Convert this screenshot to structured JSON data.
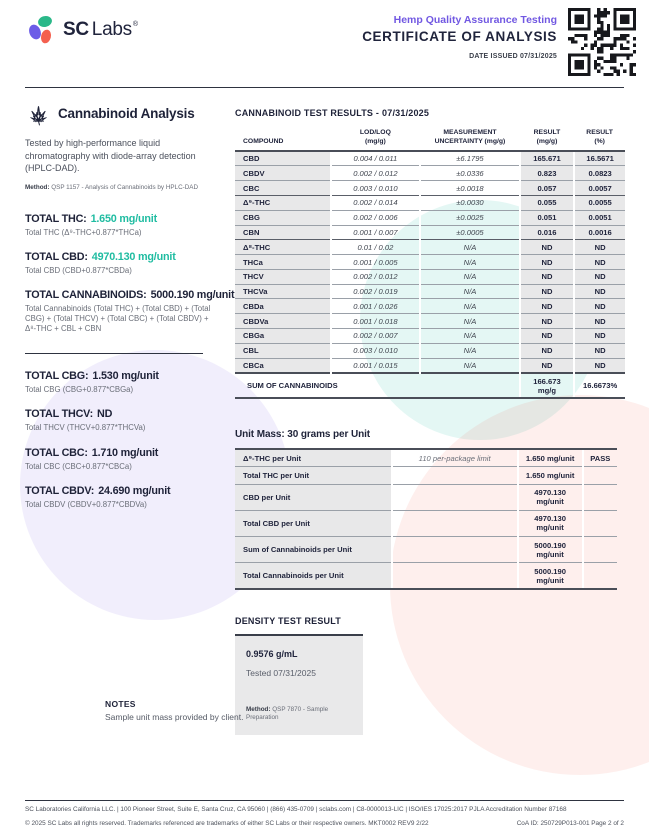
{
  "header": {
    "brand": {
      "sc": "SC",
      "labs": "Labs",
      "reg": "®"
    },
    "program": "Hemp Quality Assurance Testing",
    "title": "CERTIFICATE OF ANALYSIS",
    "date_issued": "DATE ISSUED 07/31/2025"
  },
  "left_panel": {
    "section_title": "Cannabinoid Analysis",
    "description": "Tested by high-performance liquid chromatography with diode-array detection (HPLC-DAD).",
    "method_label": "Method:",
    "method_text": "QSP 1157 - Analysis of Cannabinoids by HPLC-DAD",
    "totals": [
      {
        "label": "TOTAL THC:",
        "value": "1.650 mg/unit",
        "teal": true,
        "formula": "Total THC (Δ⁹-THC+0.877*THCa)"
      },
      {
        "label": "TOTAL CBD:",
        "value": "4970.130 mg/unit",
        "teal": true,
        "formula": "Total CBD (CBD+0.877*CBDa)"
      },
      {
        "label": "TOTAL CANNABINOIDS:",
        "value": "5000.190 mg/unit",
        "teal": false,
        "formula": "Total Cannabinoids (Total THC) + (Total CBD) + (Total CBG) + (Total THCV) + (Total CBC) + (Total CBDV) + Δ⁸-THC + CBL + CBN",
        "divider_after": true
      },
      {
        "label": "TOTAL CBG:",
        "value": "1.530 mg/unit",
        "teal": false,
        "formula": "Total CBG (CBG+0.877*CBGa)"
      },
      {
        "label": "TOTAL THCV:",
        "value": "ND",
        "teal": false,
        "formula": "Total THCV (THCV+0.877*THCVa)"
      },
      {
        "label": "TOTAL CBC:",
        "value": "1.710 mg/unit",
        "teal": false,
        "formula": "Total CBC (CBC+0.877*CBCa)"
      },
      {
        "label": "TOTAL CBDV:",
        "value": "24.690 mg/unit",
        "teal": false,
        "formula": "Total CBDV (CBDV+0.877*CBDVa)"
      }
    ]
  },
  "results_section": {
    "title": "CANNABINOID TEST RESULTS -",
    "date": "07/31/2025",
    "columns": [
      {
        "l1": "COMPOUND",
        "l2": ""
      },
      {
        "l1": "LOD/LOQ",
        "l2": "(mg/g)"
      },
      {
        "l1": "MEASUREMENT",
        "l2": "UNCERTAINTY (mg/g)"
      },
      {
        "l1": "RESULT",
        "l2": "(mg/g)"
      },
      {
        "l1": "RESULT",
        "l2": "(%)"
      }
    ],
    "rows": [
      {
        "compound": "CBD",
        "lod_loq": "0.004 / 0.011",
        "uncertainty": "±6.1795",
        "result_mg": "165.671",
        "result_pct": "16.5671"
      },
      {
        "compound": "CBDV",
        "lod_loq": "0.002 / 0.012",
        "uncertainty": "±0.0336",
        "result_mg": "0.823",
        "result_pct": "0.0823"
      },
      {
        "compound": "CBC",
        "lod_loq": "0.003 / 0.010",
        "uncertainty": "±0.0018",
        "result_mg": "0.057",
        "result_pct": "0.0057",
        "group_end": true
      },
      {
        "compound": "Δ⁹-THC",
        "lod_loq": "0.002 / 0.014",
        "uncertainty": "±0.0030",
        "result_mg": "0.055",
        "result_pct": "0.0055"
      },
      {
        "compound": "CBG",
        "lod_loq": "0.002 / 0.006",
        "uncertainty": "±0.0025",
        "result_mg": "0.051",
        "result_pct": "0.0051"
      },
      {
        "compound": "CBN",
        "lod_loq": "0.001 / 0.007",
        "uncertainty": "±0.0005",
        "result_mg": "0.016",
        "result_pct": "0.0016",
        "group_end": true
      },
      {
        "compound": "Δ⁸-THC",
        "lod_loq": "0.01 / 0.02",
        "uncertainty": "N/A",
        "result_mg": "ND",
        "result_pct": "ND"
      },
      {
        "compound": "THCa",
        "lod_loq": "0.001 / 0.005",
        "uncertainty": "N/A",
        "result_mg": "ND",
        "result_pct": "ND"
      },
      {
        "compound": "THCV",
        "lod_loq": "0.002 / 0.012",
        "uncertainty": "N/A",
        "result_mg": "ND",
        "result_pct": "ND"
      },
      {
        "compound": "THCVa",
        "lod_loq": "0.002 / 0.019",
        "uncertainty": "N/A",
        "result_mg": "ND",
        "result_pct": "ND"
      },
      {
        "compound": "CBDa",
        "lod_loq": "0.001 / 0.026",
        "uncertainty": "N/A",
        "result_mg": "ND",
        "result_pct": "ND"
      },
      {
        "compound": "CBDVa",
        "lod_loq": "0.001 / 0.018",
        "uncertainty": "N/A",
        "result_mg": "ND",
        "result_pct": "ND"
      },
      {
        "compound": "CBGa",
        "lod_loq": "0.002 / 0.007",
        "uncertainty": "N/A",
        "result_mg": "ND",
        "result_pct": "ND"
      },
      {
        "compound": "CBL",
        "lod_loq": "0.003 / 0.010",
        "uncertainty": "N/A",
        "result_mg": "ND",
        "result_pct": "ND"
      },
      {
        "compound": "CBCa",
        "lod_loq": "0.001 / 0.015",
        "uncertainty": "N/A",
        "result_mg": "ND",
        "result_pct": "ND"
      }
    ],
    "sum_row": {
      "label": "SUM OF CANNABINOIDS",
      "result_mg": "166.673 mg/g",
      "result_pct": "16.6673%"
    }
  },
  "unit_mass": {
    "title": "Unit Mass: 30 grams per Unit",
    "rows": [
      {
        "label": "Δ⁹-THC per Unit",
        "limit": "110 per-package limit",
        "value": "1.650 mg/unit",
        "status": "PASS"
      },
      {
        "label": "Total THC per Unit",
        "limit": "",
        "value": "1.650 mg/unit",
        "status": ""
      },
      {
        "label": "CBD per Unit",
        "limit": "",
        "value": "4970.130 mg/unit",
        "status": ""
      },
      {
        "label": "Total CBD per Unit",
        "limit": "",
        "value": "4970.130 mg/unit",
        "status": ""
      },
      {
        "label": "Sum of Cannabinoids per Unit",
        "limit": "",
        "value": "5000.190 mg/unit",
        "status": ""
      },
      {
        "label": "Total Cannabinoids per Unit",
        "limit": "",
        "value": "5000.190 mg/unit",
        "status": ""
      }
    ]
  },
  "density": {
    "title": "DENSITY TEST RESULT",
    "value": "0.9576 g/mL",
    "tested": "Tested 07/31/2025",
    "method_label": "Method:",
    "method_text": "QSP 7870 - Sample Preparation"
  },
  "notes": {
    "title": "NOTES",
    "text": "Sample unit mass provided by client."
  },
  "footer": {
    "line1": "SC Laboratories California LLC. | 100 Pioneer Street, Suite E, Santa Cruz, CA 95060 | (866) 435-0709 | sclabs.com | C8-0000013-LIC | ISO/IES 17025:2017 PJLA Accreditation Number 87168",
    "line2": "© 2025 SC Labs all rights reserved. Trademarks referenced are trademarks of either SC Labs or their respective owners. MKT0002 REV9 2/22",
    "coa_id": "CoA ID: 250729P013-001  Page 2 of 2"
  },
  "colors": {
    "accent_teal": "#1fbca1",
    "accent_purple": "#7158e2",
    "navy": "#20243c",
    "logo_teal": "#2bb889",
    "logo_coral": "#f4604f"
  }
}
